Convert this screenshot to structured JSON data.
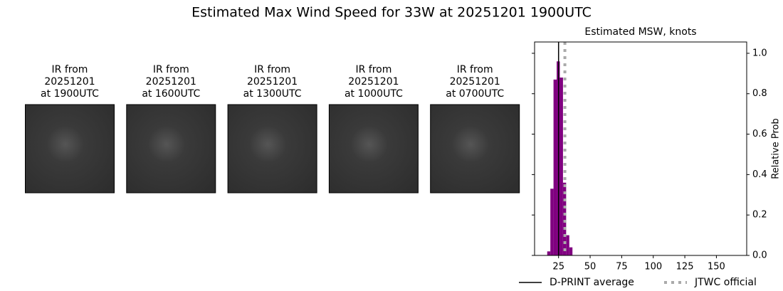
{
  "title": "Estimated Max Wind Speed for 33W at 20251201 1900UTC",
  "panels": [
    {
      "title": [
        "IR from",
        "20251201",
        "at 1900UTC"
      ]
    },
    {
      "title": [
        "IR from",
        "20251201",
        "at 1600UTC"
      ]
    },
    {
      "title": [
        "IR from",
        "20251201",
        "at 1300UTC"
      ]
    },
    {
      "title": [
        "IR from",
        "20251201",
        "at 1000UTC"
      ]
    },
    {
      "title": [
        "IR from",
        "20251201",
        "at 0700UTC"
      ]
    }
  ],
  "chart_data": {
    "type": "histogram",
    "title": "Estimated MSW, knots",
    "y_label": "Relative Prob",
    "bins": [
      16,
      18.5,
      21,
      23.5,
      26,
      28.5,
      31,
      33.5,
      36
    ],
    "values": [
      0.02,
      0.33,
      0.87,
      0.96,
      0.88,
      0.36,
      0.1,
      0.04
    ],
    "color": "#800080",
    "xlim": [
      6,
      174
    ],
    "xticks": [
      25,
      50,
      75,
      100,
      125,
      150
    ],
    "ylim": [
      0,
      1.056
    ],
    "yticks": [
      {
        "value": 0,
        "label": "0.0"
      },
      {
        "value": 0.2,
        "label": "0.2"
      },
      {
        "value": 0.4,
        "label": "0.4"
      },
      {
        "value": 0.6,
        "label": "0.6"
      },
      {
        "value": 0.8,
        "label": "0.8"
      },
      {
        "value": 1,
        "label": "1.0"
      }
    ],
    "reference_lines": [
      {
        "name": "D-PRINT average",
        "color": "#000000",
        "value": 25,
        "style": "solid"
      },
      {
        "name": "JTWC official",
        "color": "#aaaaaa",
        "value": 30,
        "style": "dotted"
      }
    ],
    "legend": "bottom"
  }
}
